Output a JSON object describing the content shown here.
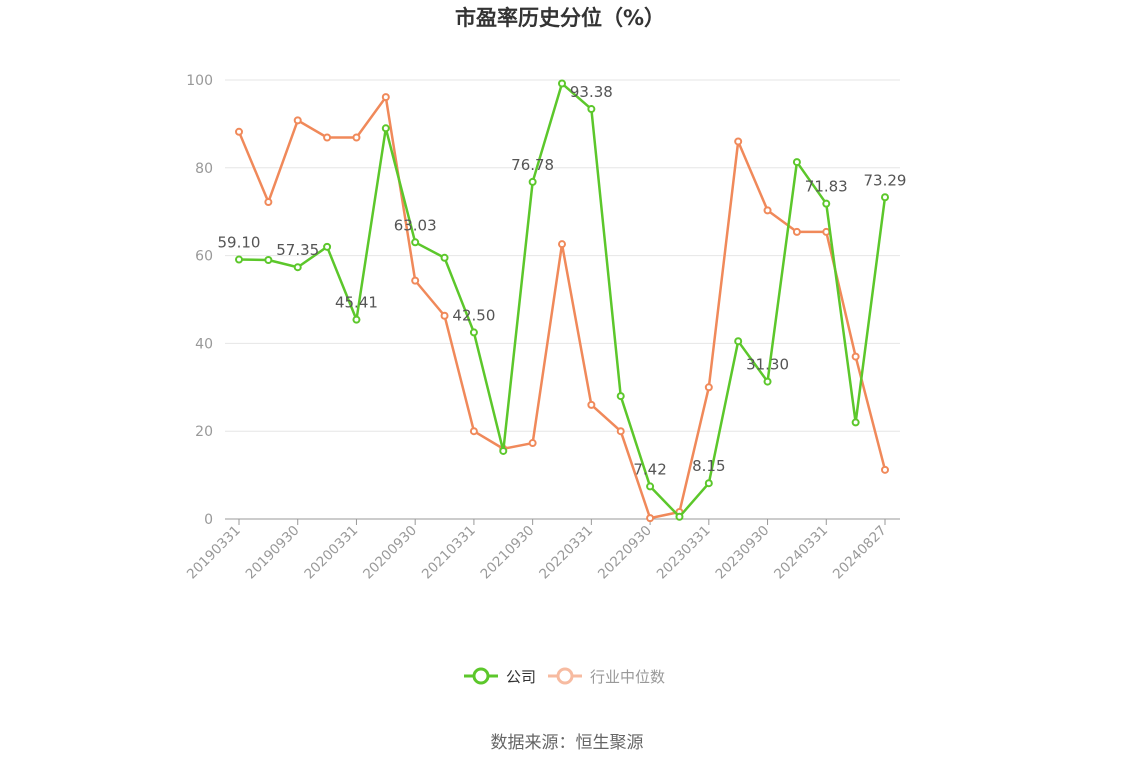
{
  "source_label": "数据来源：恒生聚源",
  "chart_data": {
    "type": "line",
    "title": "市盈率历史分位（%）",
    "xlabel": "",
    "ylabel": "",
    "ylim": [
      0,
      100
    ],
    "yticks": [
      0,
      20,
      40,
      60,
      80,
      100
    ],
    "grid": true,
    "legend_position": "bottom-center",
    "x": [
      "20190331",
      "20190630",
      "20190930",
      "20191231",
      "20200331",
      "20200630",
      "20200930",
      "20201231",
      "20210331",
      "20210630",
      "20210930",
      "20211231",
      "20220331",
      "20220630",
      "20220930",
      "20221231",
      "20230331",
      "20230630",
      "20230930",
      "20231231",
      "20240331",
      "20240630",
      "20240827"
    ],
    "x_tick_labels": [
      "20190331",
      "20190930",
      "20200331",
      "20200930",
      "20210331",
      "20210930",
      "20220331",
      "20220930",
      "20230331",
      "20230930",
      "20240331",
      "20240827"
    ],
    "series": [
      {
        "name": "公司",
        "color": "#5cc72b",
        "values": [
          59.1,
          59.0,
          57.35,
          62.0,
          45.41,
          89.0,
          63.03,
          59.5,
          42.5,
          15.5,
          76.78,
          99.2,
          93.38,
          28.0,
          7.42,
          0.5,
          8.15,
          40.5,
          31.3,
          81.3,
          71.83,
          22.0,
          73.29
        ],
        "labels": {
          "0": "59.10",
          "2": "57.35",
          "4": "45.41",
          "6": "63.03",
          "8": "42.50",
          "10": "76.78",
          "12": "93.38",
          "14": "7.42",
          "16": "8.15",
          "18": "31.30",
          "20": "71.83",
          "22": "73.29"
        }
      },
      {
        "name": "行业中位数",
        "color": "#f0895a",
        "values": [
          88.2,
          72.2,
          90.8,
          86.9,
          86.9,
          96.1,
          54.3,
          46.3,
          20.0,
          16.0,
          17.3,
          62.6,
          26.0,
          20.0,
          0.2,
          1.6,
          30.0,
          86.0,
          70.3,
          65.4,
          65.4,
          37.0,
          11.2
        ]
      }
    ]
  }
}
